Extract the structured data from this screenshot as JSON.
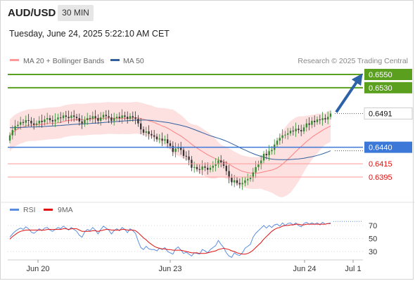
{
  "header": {
    "instrument": "AUD/USD",
    "timeframe": "30 MIN",
    "datetime": "Tuesday, June 24, 2025 5:22:10 AM CET"
  },
  "credit": "Research © 2025 Trading Central",
  "colors": {
    "candle_up": "#2e8b2e",
    "candle_down": "#333333",
    "ma20": "#ff8080",
    "bollinger_fill": "#fde0e0",
    "ma50": "#3060a0",
    "target_green": "#5aa01e",
    "pivot_blue": "#3c78d8",
    "support_red": "#ff9999",
    "support_label": "#e01010",
    "arrow": "#2e62a8",
    "rsi": "#5a8de0",
    "rsi_ma": "#e01010"
  },
  "chart_data": [
    {
      "type": "candlestick",
      "legend": [
        "MA 20 + Bollinger Bands",
        "MA 50"
      ],
      "ylim": [
        0.638,
        0.656
      ],
      "x_ticks": [
        "Jun 20",
        "Jun 23",
        "Jun 24",
        "Jul 1"
      ],
      "levels": [
        {
          "value": 0.655,
          "label": "0.6550",
          "kind": "target"
        },
        {
          "value": 0.653,
          "label": "0.6530",
          "kind": "target"
        },
        {
          "value": 0.6491,
          "label": "0.6491",
          "kind": "last"
        },
        {
          "value": 0.644,
          "label": "0.6440",
          "kind": "pivot"
        },
        {
          "value": 0.6415,
          "label": "0.6415",
          "kind": "support"
        },
        {
          "value": 0.6395,
          "label": "0.6395",
          "kind": "support"
        }
      ],
      "close": [
        0.6458,
        0.6466,
        0.6472,
        0.6474,
        0.6478,
        0.6477,
        0.6481,
        0.648,
        0.6476,
        0.6474,
        0.6476,
        0.648,
        0.6478,
        0.6482,
        0.6484,
        0.6481,
        0.6479,
        0.6482,
        0.6485,
        0.6484,
        0.6488,
        0.6486,
        0.6484,
        0.6488,
        0.6486,
        0.6484,
        0.6479,
        0.6476,
        0.6481,
        0.6484,
        0.6483,
        0.6487,
        0.6484,
        0.648,
        0.6485,
        0.6489,
        0.6487,
        0.6485,
        0.648,
        0.6484,
        0.6486,
        0.6484,
        0.6488,
        0.6486,
        0.6483,
        0.6487,
        0.6485,
        0.6483,
        0.6476,
        0.6467,
        0.6462,
        0.6464,
        0.646,
        0.6458,
        0.6456,
        0.6452,
        0.6453,
        0.645,
        0.6452,
        0.6446,
        0.6442,
        0.6433,
        0.6438,
        0.644,
        0.6436,
        0.6427,
        0.6426,
        0.6421,
        0.6409,
        0.641,
        0.6407,
        0.6406,
        0.6411,
        0.6409,
        0.6406,
        0.6409,
        0.6412,
        0.6414,
        0.642,
        0.6417,
        0.6412,
        0.6404,
        0.6394,
        0.6387,
        0.639,
        0.6386,
        0.6384,
        0.6386,
        0.639,
        0.6392,
        0.6394,
        0.6402,
        0.641,
        0.6414,
        0.642,
        0.643,
        0.6428,
        0.6434,
        0.6436,
        0.6444,
        0.645,
        0.6454,
        0.6458,
        0.6459,
        0.6461,
        0.6465,
        0.6464,
        0.6468,
        0.6466,
        0.6464,
        0.647,
        0.6476,
        0.6474,
        0.648,
        0.6478,
        0.6482,
        0.6481,
        0.6484,
        0.6482,
        0.6486,
        0.6491
      ]
    },
    {
      "type": "line",
      "legend": [
        "RSI",
        "9MA"
      ],
      "ylim": [
        20,
        80
      ],
      "y_ticks": [
        30,
        50,
        70
      ],
      "series": [
        {
          "name": "RSI",
          "values": [
            52,
            57,
            61,
            64,
            66,
            64,
            68,
            65,
            60,
            58,
            61,
            65,
            62,
            66,
            67,
            63,
            61,
            64,
            67,
            65,
            69,
            66,
            63,
            67,
            64,
            61,
            55,
            52,
            60,
            64,
            62,
            67,
            63,
            57,
            64,
            69,
            66,
            63,
            57,
            62,
            65,
            62,
            67,
            64,
            59,
            65,
            62,
            58,
            46,
            36,
            33,
            38,
            34,
            33,
            33,
            31,
            35,
            33,
            36,
            30,
            28,
            26,
            34,
            37,
            32,
            27,
            29,
            26,
            23,
            28,
            27,
            26,
            33,
            31,
            28,
            33,
            36,
            39,
            47,
            41,
            36,
            28,
            23,
            21,
            28,
            25,
            24,
            28,
            35,
            38,
            41,
            52,
            58,
            62,
            66,
            70,
            66,
            70,
            67,
            71,
            72,
            69,
            74,
            70,
            73,
            74,
            71,
            74,
            70,
            68,
            73,
            75,
            72,
            74,
            72,
            74,
            71,
            75,
            72,
            73,
            74
          ]
        },
        {
          "name": "9MA",
          "values": [
            49,
            53,
            56,
            59,
            61,
            62,
            63,
            63,
            63,
            63,
            63,
            63,
            63,
            63,
            64,
            64,
            64,
            64,
            64,
            64,
            65,
            65,
            64,
            65,
            65,
            65,
            63,
            61,
            61,
            61,
            61,
            62,
            62,
            61,
            62,
            63,
            64,
            64,
            63,
            63,
            63,
            63,
            64,
            64,
            63,
            63,
            63,
            62,
            59,
            55,
            51,
            48,
            44,
            41,
            38,
            36,
            35,
            34,
            34,
            33,
            33,
            32,
            32,
            32,
            32,
            31,
            30,
            29,
            28,
            28,
            28,
            27,
            27,
            27,
            28,
            29,
            30,
            31,
            33,
            34,
            35,
            34,
            33,
            31,
            30,
            28,
            27,
            26,
            26,
            27,
            29,
            32,
            36,
            40,
            44,
            49,
            53,
            57,
            61,
            64,
            66,
            67,
            69,
            70,
            70,
            71,
            71,
            72,
            72,
            71,
            71,
            72,
            72,
            72,
            72,
            72,
            72,
            72,
            72,
            73,
            73
          ]
        }
      ]
    }
  ]
}
